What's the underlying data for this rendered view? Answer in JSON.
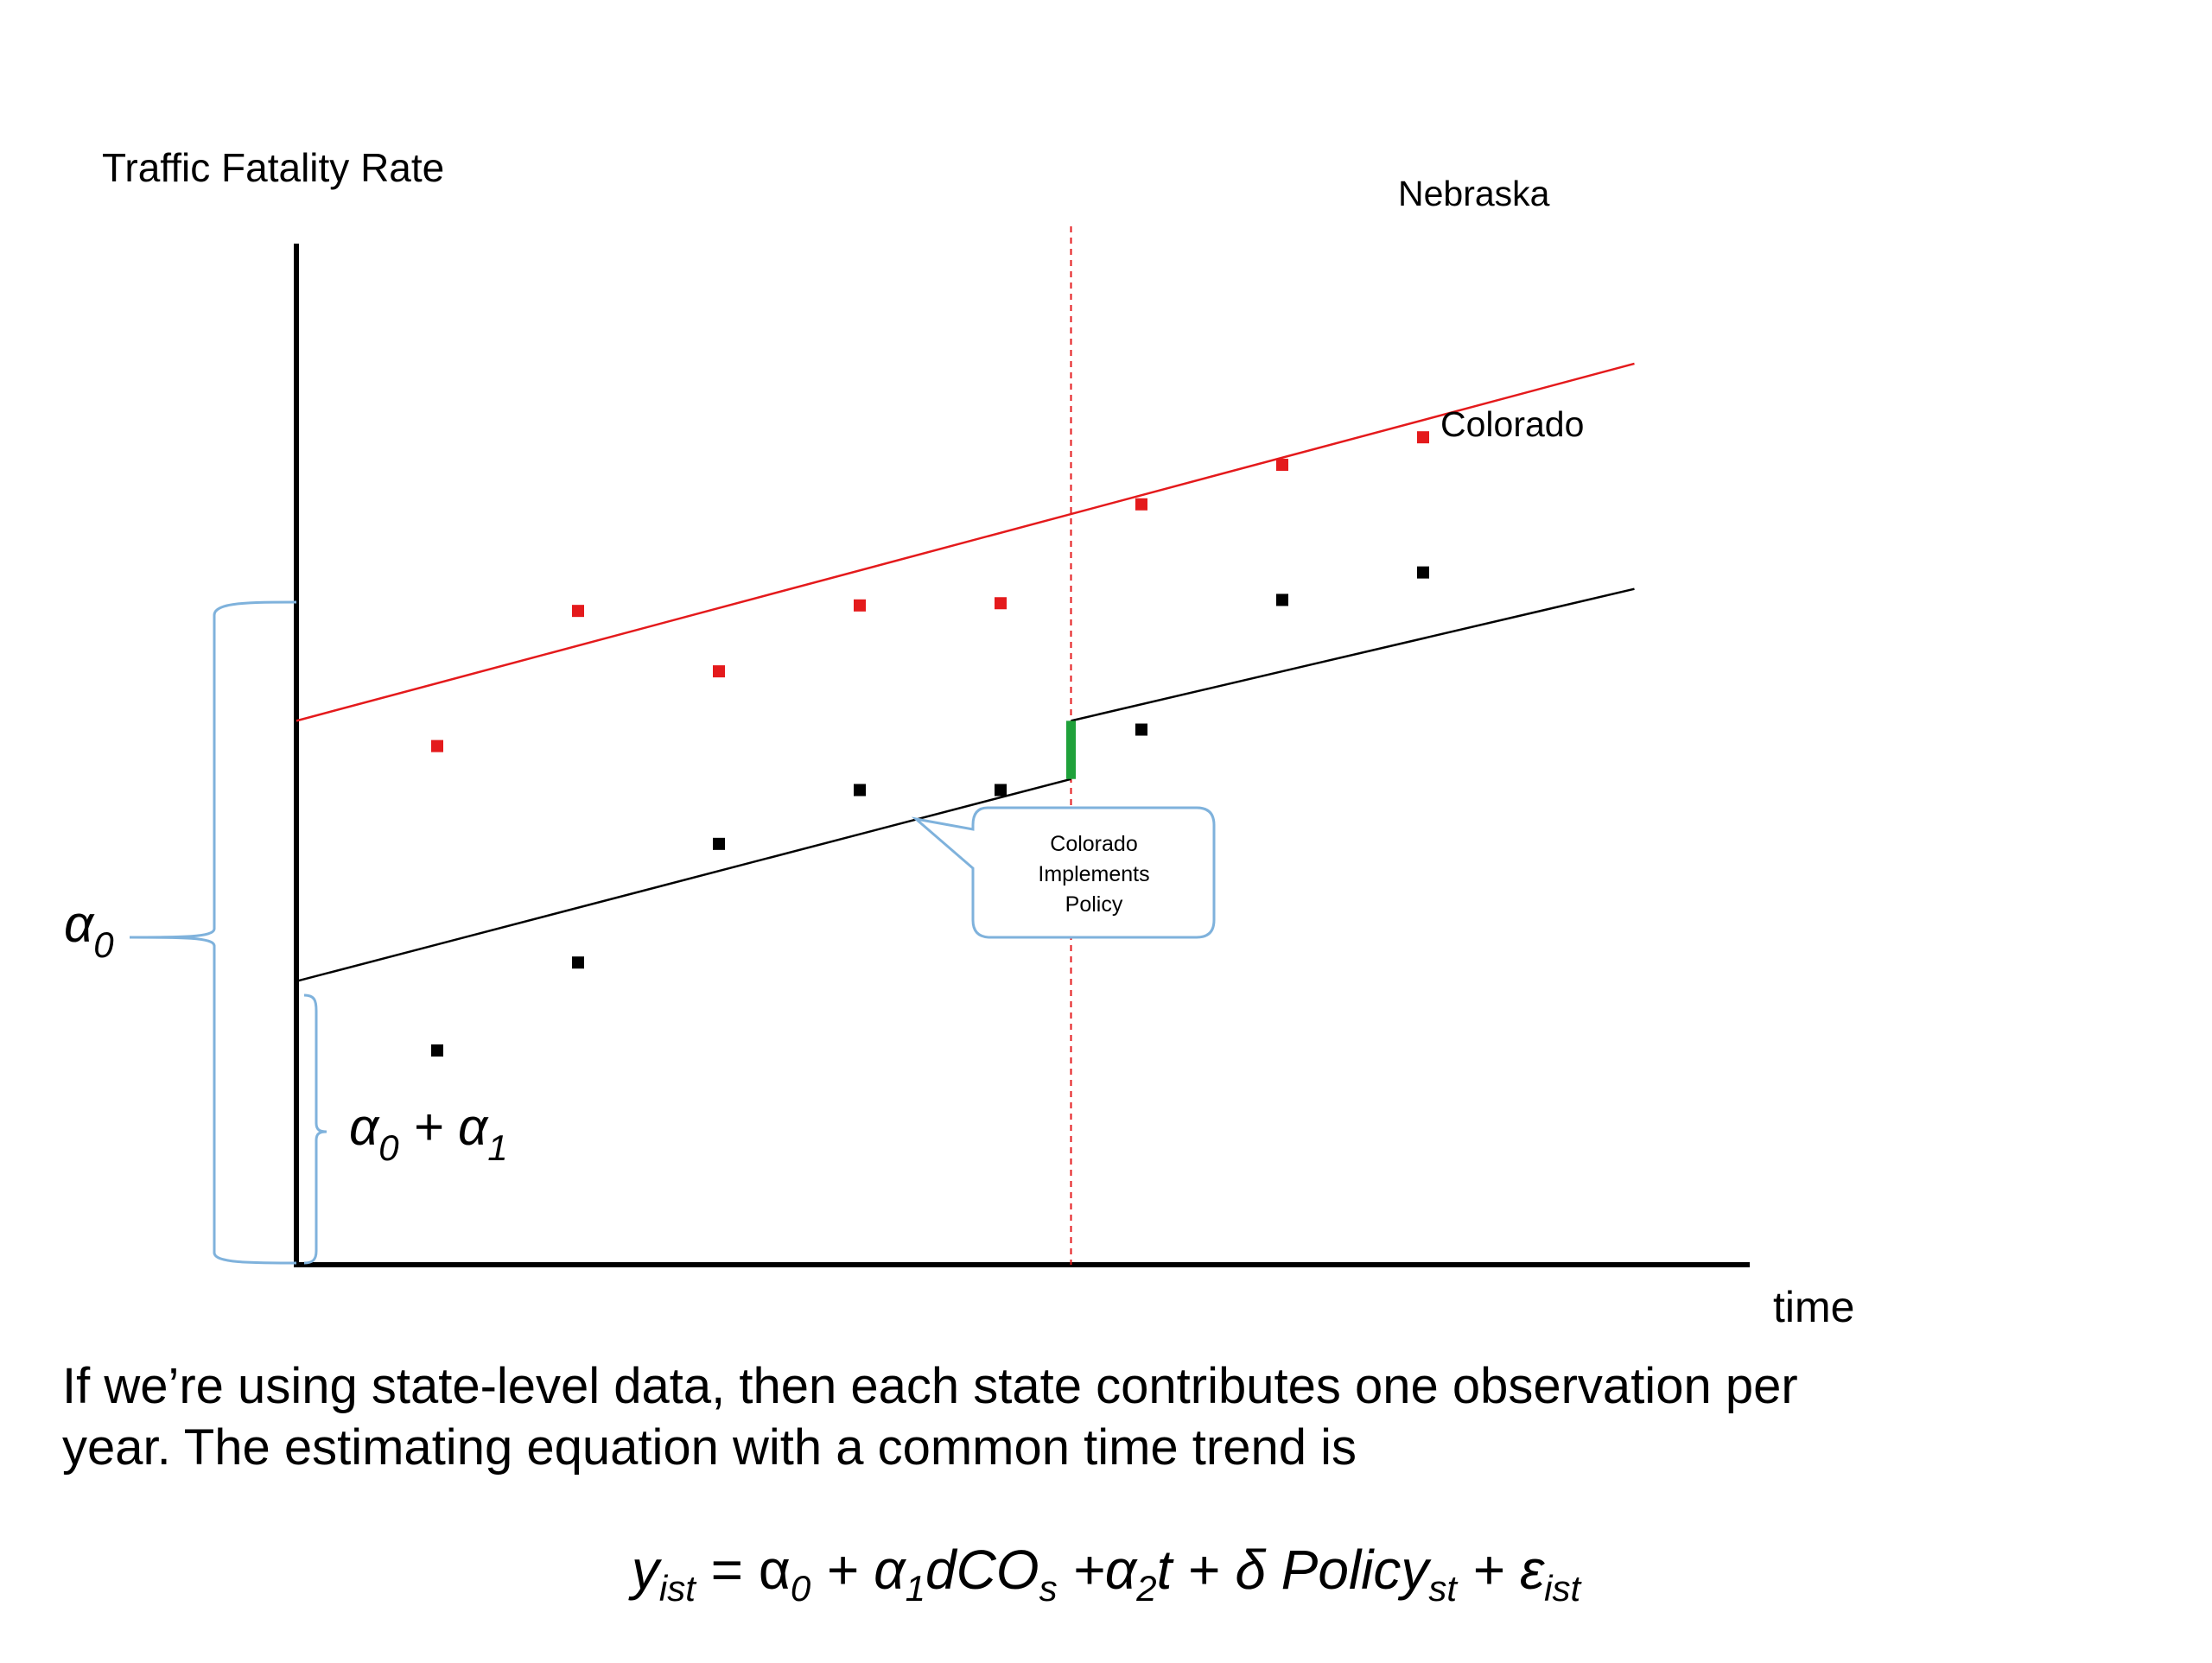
{
  "chart_data": {
    "type": "scatter",
    "ylabel": "Traffic Fatality Rate",
    "xlabel": "time",
    "policy_year": 5.5,
    "series": [
      {
        "name": "Nebraska",
        "color": "#e41a1c",
        "points": [
          [
            1,
            4.72
          ],
          [
            2,
            5.95
          ],
          [
            3,
            5.4
          ],
          [
            4,
            6.0
          ],
          [
            5,
            6.02
          ],
          [
            6,
            6.92
          ],
          [
            7,
            7.28
          ],
          [
            8,
            7.53
          ]
        ],
        "fit": [
          [
            0,
            4.95
          ],
          [
            9.5,
            8.2
          ]
        ]
      },
      {
        "name": "Colorado",
        "color": "#000000",
        "points": [
          [
            1,
            1.95
          ],
          [
            2,
            2.75
          ],
          [
            3,
            3.83
          ],
          [
            4,
            4.32
          ],
          [
            5,
            4.32
          ],
          [
            6,
            4.87
          ],
          [
            7,
            6.05
          ],
          [
            8,
            6.3
          ]
        ],
        "fit_pre": [
          [
            0,
            2.58
          ],
          [
            5.5,
            4.42
          ]
        ],
        "fit_post": [
          [
            5.5,
            4.95
          ],
          [
            9.5,
            6.15
          ]
        ]
      }
    ],
    "policy_effect_color": "#1fa13a",
    "policy_line_color": "#e41a1c",
    "brace_color": "#7fb2dc"
  },
  "annotations": {
    "policy_callout": [
      "Colorado",
      "Implements",
      "Policy"
    ],
    "alpha0_label": "α",
    "alpha0_sub": "0",
    "alpha01_label_a": "α",
    "alpha01_sub_a": "0",
    "alpha01_plus": " + ",
    "alpha01_label_b": "α",
    "alpha01_sub_b": "1"
  },
  "text": {
    "paragraph_line1": "If we’re using state-level data, then each state contributes one observation per",
    "paragraph_line2": "year.  The estimating equation with a common time trend is"
  },
  "equation": {
    "y": "y",
    "y_sub": "ist",
    "eq1": " = α",
    "a0_sub": "0",
    "plus1": " + α",
    "a1_sub": "1",
    "dco": "dCO",
    "dco_sub": "s",
    "plus2": " +α",
    "a2_sub": "2",
    "t": "t + δ Policy",
    "policy_sub": "st",
    "plus3": " + ε",
    "eps_sub": "ist"
  }
}
